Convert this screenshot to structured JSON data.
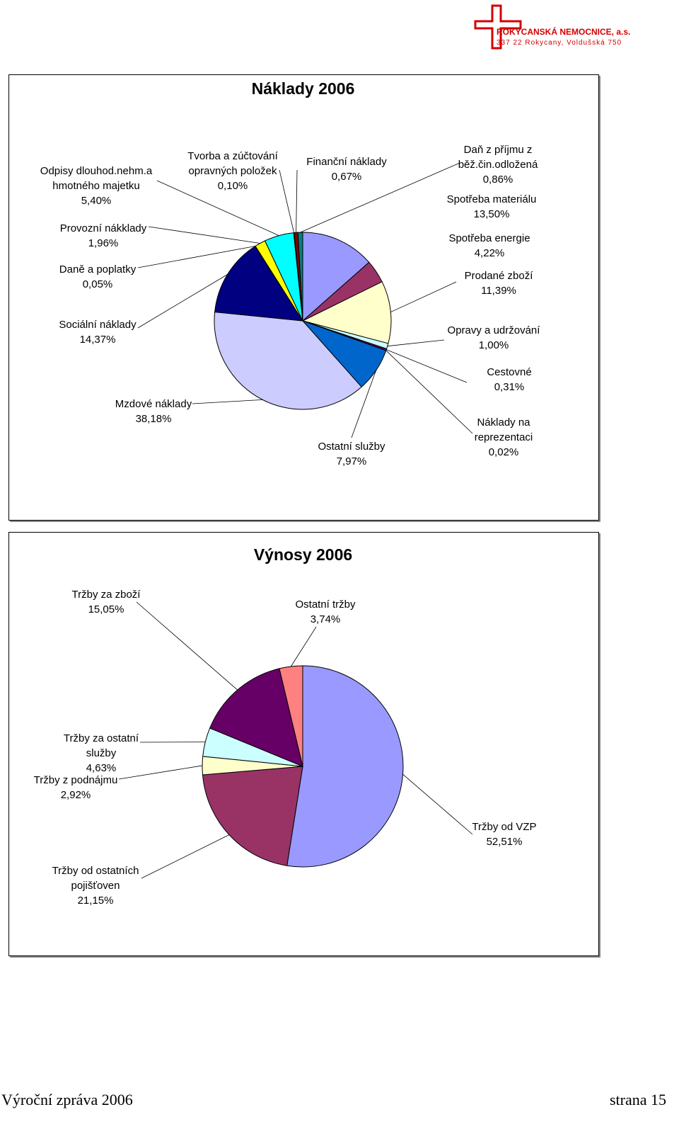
{
  "header": {
    "name": "ROKYCANSKÁ NEMOCNICE, a.s.",
    "address": "337 22 Rokycany, Voldušská 750"
  },
  "chart_data": [
    {
      "type": "pie",
      "title": "Náklady 2006",
      "categories": [
        "Spotřeba materiálu",
        "Spotřeba energie",
        "Prodané zboží",
        "Opravy a udržování",
        "Cestovné",
        "Náklady na reprezentaci",
        "Ostatní služby",
        "Mzdové náklady",
        "Sociální náklady",
        "Daně a poplatky",
        "Provozní nákklady",
        "Odpisy dlouhod.nehm.a hmotného majetku",
        "Tvorba a zúčtování opravných položek",
        "Finanční náklady",
        "Daň z příjmu z běž.čin.odložená"
      ],
      "values": [
        13.5,
        4.22,
        11.39,
        1.0,
        0.31,
        0.02,
        7.97,
        38.18,
        14.37,
        0.05,
        1.96,
        5.4,
        0.1,
        0.67,
        0.86
      ],
      "value_labels": [
        "13,50%",
        "4,22%",
        "11,39%",
        "1,00%",
        "0,31%",
        "0,02%",
        "7,97%",
        "38,18%",
        "14,37%",
        "0,05%",
        "1,96%",
        "5,40%",
        "0,10%",
        "0,67%",
        "0,86%"
      ],
      "colors": [
        "#9999ff",
        "#993366",
        "#ffffcc",
        "#ccffff",
        "#660066",
        "#ff8080",
        "#0066cc",
        "#ccccff",
        "#000080",
        "#ff00ff",
        "#ffff00",
        "#00ffff",
        "#800080",
        "#800000",
        "#008080"
      ]
    },
    {
      "type": "pie",
      "title": "Výnosy  2006",
      "categories": [
        "Tržby od VZP",
        "Tržby od ostatních pojišťoven",
        "Tržby z podnájmu",
        "Tržby za ostatní služby",
        "Tržby za zboží",
        "Ostatní tržby"
      ],
      "values": [
        52.51,
        21.15,
        2.92,
        4.63,
        15.05,
        3.74
      ],
      "value_labels": [
        "52,51%",
        "21,15%",
        "2,92%",
        "4,63%",
        "15,05%",
        "3,74%"
      ],
      "colors": [
        "#9999ff",
        "#993366",
        "#ffffcc",
        "#ccffff",
        "#660066",
        "#ff8080"
      ]
    }
  ],
  "footer": {
    "left": "Výroční zpráva 2006",
    "right": "strana  15"
  }
}
